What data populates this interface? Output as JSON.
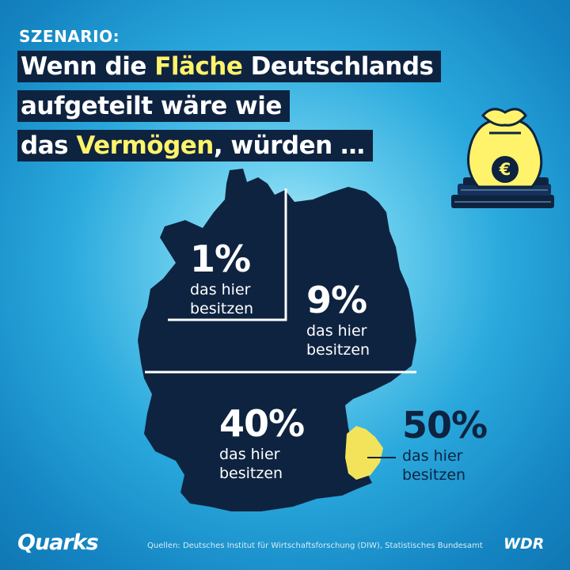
{
  "kicker": "SZENARIO:",
  "headline": {
    "line1_pre": "Wenn die ",
    "line1_hl": "Fläche",
    "line1_post": " Deutschlands",
    "line2": "aufgeteilt wäre wie",
    "line3_pre": "das ",
    "line3_hl": "Vermögen",
    "line3_post": ", würden …"
  },
  "regions": [
    {
      "percent": "1%",
      "label_line1": "das hier",
      "label_line2": "besitzen"
    },
    {
      "percent": "9%",
      "label_line1": "das hier",
      "label_line2": "besitzen"
    },
    {
      "percent": "40%",
      "label_line1": "das hier",
      "label_line2": "besitzen"
    },
    {
      "percent": "50%",
      "label_line1": "das hier",
      "label_line2": "besitzen"
    }
  ],
  "money_bag_symbol": "€",
  "source": "Quellen: Deutsches Institut für Wirtschaftsforschung (DIW), Statistisches Bundesamt",
  "logos": {
    "left": "Quarks",
    "right": "WDR"
  },
  "colors": {
    "navy": "#0e2340",
    "highlight": "#fff36b",
    "accent_yellow": "#f3e35a",
    "sky": "#2aa9dd"
  },
  "icons": [
    "money-bag-icon",
    "euro-icon"
  ]
}
